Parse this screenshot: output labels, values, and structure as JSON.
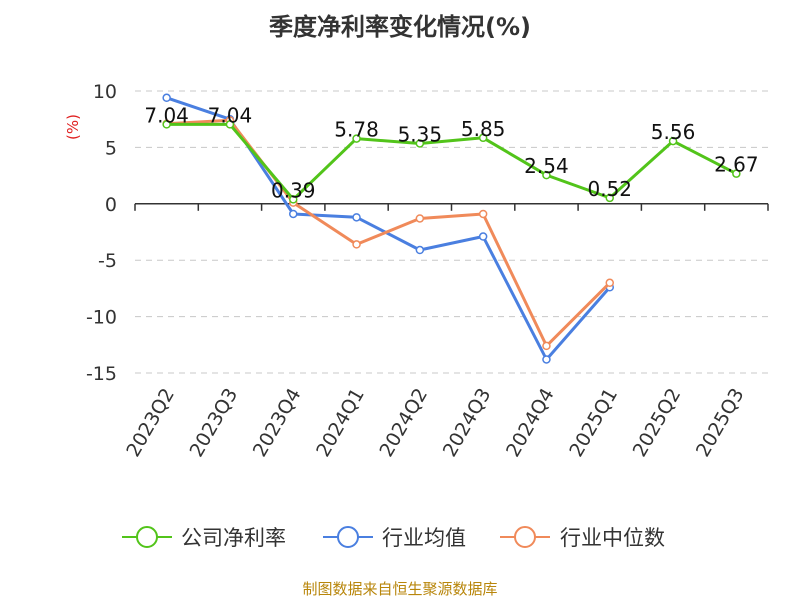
{
  "chart_data": {
    "type": "line",
    "title": "季度净利率变化情况(%)",
    "unit_label": "(%)",
    "categories": [
      "2023Q2",
      "2023Q3",
      "2023Q4",
      "2024Q1",
      "2024Q2",
      "2024Q3",
      "2024Q4",
      "2025Q1",
      "2025Q2",
      "2025Q3"
    ],
    "ylim": [
      -15,
      10
    ],
    "yticks": [
      10,
      5,
      0,
      -5,
      -10,
      -15
    ],
    "grid": true,
    "legend_position": "bottom",
    "series": [
      {
        "name": "公司净利率",
        "color": "#52c41a",
        "values": [
          7.04,
          7.04,
          0.39,
          5.78,
          5.35,
          5.85,
          2.54,
          0.52,
          5.56,
          2.67
        ],
        "labels": [
          "7.04",
          "7.04",
          "0.39",
          "5.78",
          "5.35",
          "5.85",
          "2.54",
          "0.52",
          "5.56",
          "2.67"
        ]
      },
      {
        "name": "行业均值",
        "color": "#4a7fe0",
        "values": [
          9.4,
          7.5,
          -0.9,
          -1.2,
          -4.1,
          -2.9,
          -13.8,
          -7.4,
          null,
          null
        ]
      },
      {
        "name": "行业中位数",
        "color": "#f08a5a",
        "values": [
          7.1,
          7.4,
          0.1,
          -3.6,
          -1.3,
          -0.9,
          -12.6,
          -7.0,
          null,
          null
        ]
      }
    ]
  },
  "source": "制图数据来自恒生聚源数据库"
}
